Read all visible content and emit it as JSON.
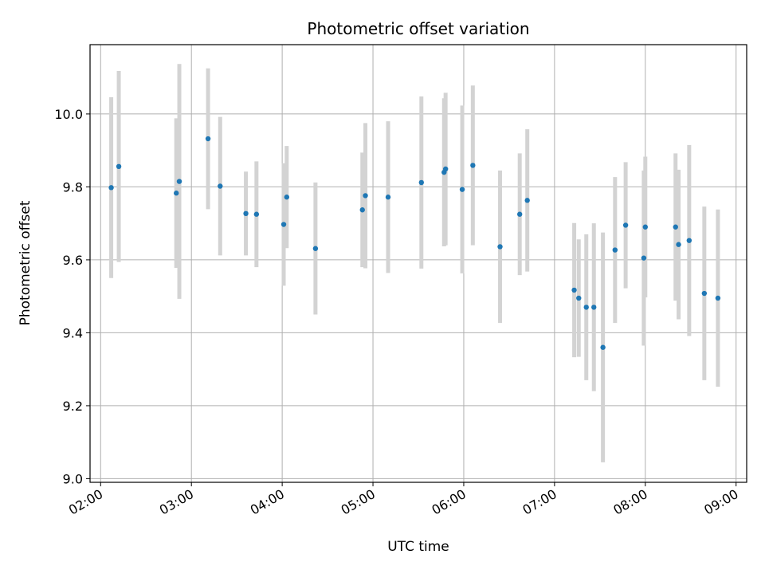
{
  "chart_data": {
    "type": "scatter",
    "title": "Photometric offset variation",
    "xlabel": "UTC time",
    "ylabel": "Photometric offset",
    "x_ticks": [
      "02:00",
      "03:00",
      "04:00",
      "05:00",
      "06:00",
      "07:00",
      "08:00",
      "09:00"
    ],
    "y_ticks": [
      "9.0",
      "9.2",
      "9.4",
      "9.6",
      "9.8",
      "10.0"
    ],
    "xlim": [
      "01:53",
      "09:07"
    ],
    "ylim": [
      8.99,
      10.19
    ],
    "grid": true,
    "colors": {
      "marker": "#1f77b4",
      "errorbar": "#d3d3d3",
      "grid": "#b0b0b0"
    },
    "points": [
      {
        "t": "02:07",
        "y": 9.798,
        "err": 0.248
      },
      {
        "t": "02:12",
        "y": 9.856,
        "err": 0.262
      },
      {
        "t": "02:50",
        "y": 9.783,
        "err": 0.205
      },
      {
        "t": "02:52",
        "y": 9.815,
        "err": 0.322
      },
      {
        "t": "03:11",
        "y": 9.932,
        "err": 0.193
      },
      {
        "t": "03:19",
        "y": 9.802,
        "err": 0.19
      },
      {
        "t": "03:36",
        "y": 9.727,
        "err": 0.115
      },
      {
        "t": "03:43",
        "y": 9.725,
        "err": 0.145
      },
      {
        "t": "04:01",
        "y": 9.697,
        "err": 0.168
      },
      {
        "t": "04:03",
        "y": 9.772,
        "err": 0.14
      },
      {
        "t": "04:22",
        "y": 9.631,
        "err": 0.181
      },
      {
        "t": "04:53",
        "y": 9.737,
        "err": 0.157
      },
      {
        "t": "04:55",
        "y": 9.776,
        "err": 0.199
      },
      {
        "t": "05:10",
        "y": 9.772,
        "err": 0.208
      },
      {
        "t": "05:32",
        "y": 9.812,
        "err": 0.236
      },
      {
        "t": "05:47",
        "y": 9.84,
        "err": 0.203
      },
      {
        "t": "05:48",
        "y": 9.849,
        "err": 0.209
      },
      {
        "t": "05:59",
        "y": 9.793,
        "err": 0.23
      },
      {
        "t": "06:06",
        "y": 9.859,
        "err": 0.219
      },
      {
        "t": "06:24",
        "y": 9.636,
        "err": 0.209
      },
      {
        "t": "06:37",
        "y": 9.725,
        "err": 0.167
      },
      {
        "t": "06:42",
        "y": 9.763,
        "err": 0.195
      },
      {
        "t": "07:13",
        "y": 9.517,
        "err": 0.184
      },
      {
        "t": "07:16",
        "y": 9.495,
        "err": 0.161
      },
      {
        "t": "07:21",
        "y": 9.47,
        "err": 0.2
      },
      {
        "t": "07:26",
        "y": 9.47,
        "err": 0.23
      },
      {
        "t": "07:32",
        "y": 9.36,
        "err": 0.315
      },
      {
        "t": "07:40",
        "y": 9.627,
        "err": 0.2
      },
      {
        "t": "07:47",
        "y": 9.695,
        "err": 0.173
      },
      {
        "t": "07:59",
        "y": 9.605,
        "err": 0.24
      },
      {
        "t": "08:00",
        "y": 9.69,
        "err": 0.193
      },
      {
        "t": "08:20",
        "y": 9.69,
        "err": 0.202
      },
      {
        "t": "08:22",
        "y": 9.642,
        "err": 0.205
      },
      {
        "t": "08:29",
        "y": 9.653,
        "err": 0.262
      },
      {
        "t": "08:39",
        "y": 9.508,
        "err": 0.238
      },
      {
        "t": "08:48",
        "y": 9.495,
        "err": 0.243
      }
    ]
  }
}
